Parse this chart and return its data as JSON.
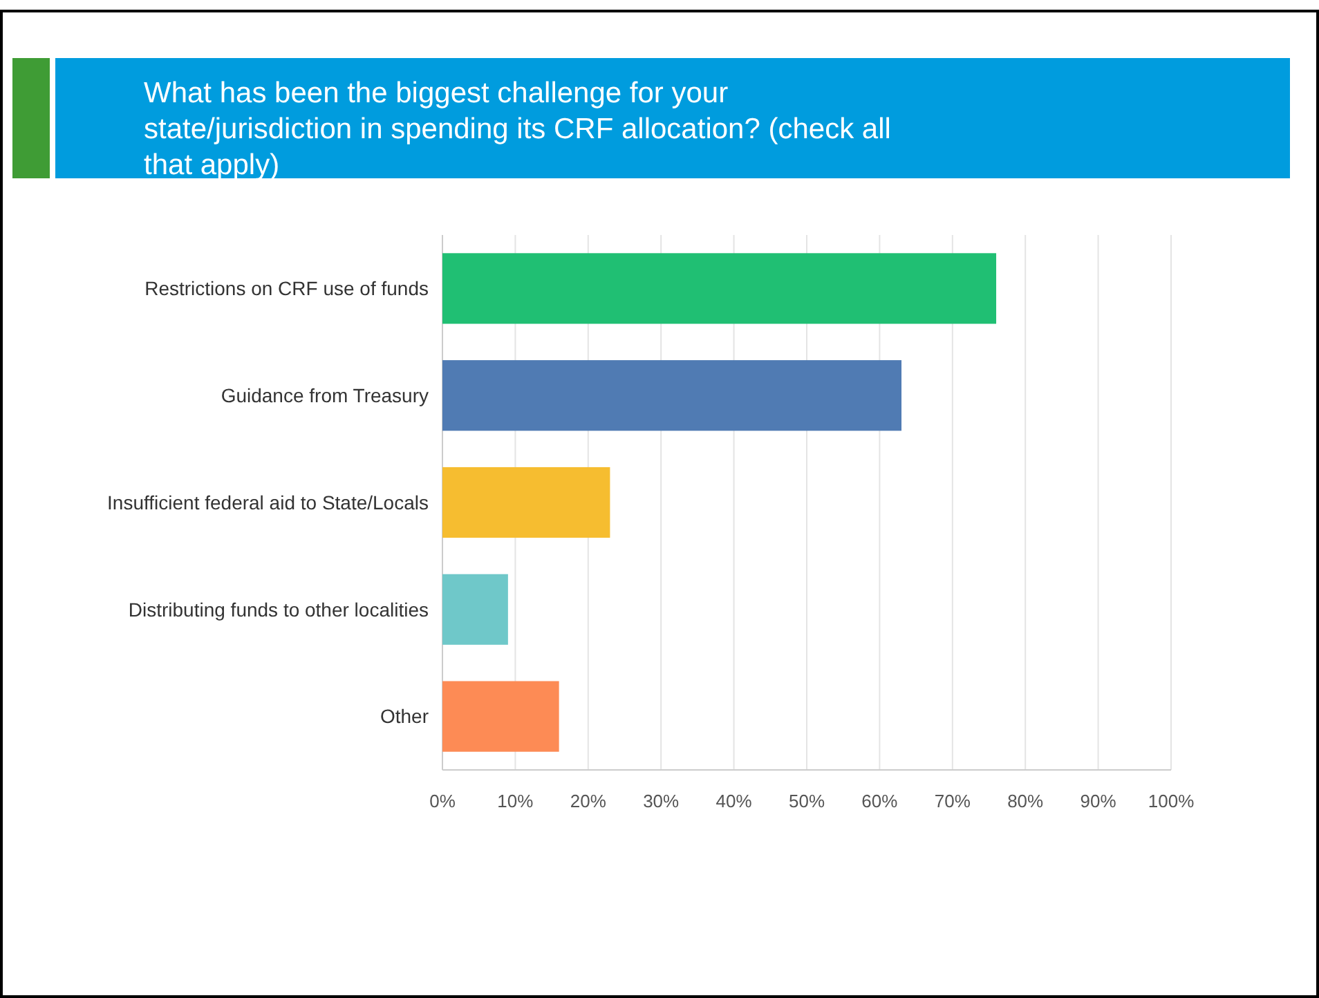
{
  "chart_data": {
    "type": "bar",
    "orientation": "horizontal",
    "title": "What has been the biggest challenge for your state/jurisdiction in spending its CRF allocation? (check all that apply)",
    "categories": [
      "Restrictions on CRF use of funds",
      "Guidance from Treasury",
      "Insufficient federal aid to State/Locals",
      "Distributing funds to other localities",
      "Other"
    ],
    "values": [
      76,
      63,
      23,
      9,
      16
    ],
    "colors": [
      "#20bf73",
      "#507bb3",
      "#f6bd30",
      "#6fc8c9",
      "#fd8b55"
    ],
    "xlim": [
      0,
      100
    ],
    "xticks": [
      {
        "value": 0,
        "label": "0%"
      },
      {
        "value": 10,
        "label": "10%"
      },
      {
        "value": 20,
        "label": "20%"
      },
      {
        "value": 30,
        "label": "30%"
      },
      {
        "value": 40,
        "label": "40%"
      },
      {
        "value": 50,
        "label": "50%"
      },
      {
        "value": 60,
        "label": "60%"
      },
      {
        "value": 70,
        "label": "70%"
      },
      {
        "value": 80,
        "label": "80%"
      },
      {
        "value": 90,
        "label": "90%"
      },
      {
        "value": 100,
        "label": "100%"
      }
    ],
    "grid": "x"
  }
}
